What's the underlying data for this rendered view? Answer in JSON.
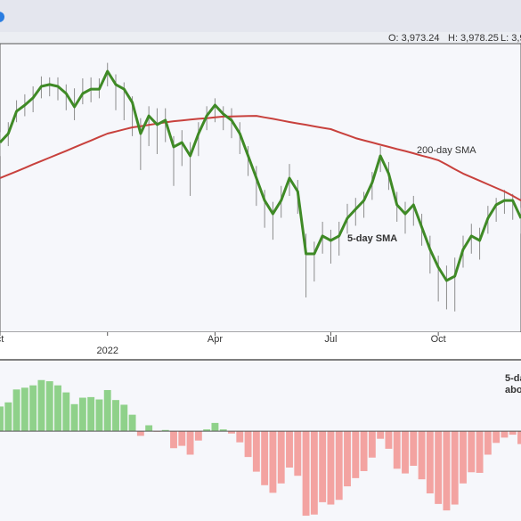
{
  "header": [
    "O: 3,973.24",
    "H: 3,978.25",
    "L: 3,9"
  ],
  "chart_data": [
    {
      "type": "line",
      "categories": [
        "ct",
        null,
        null,
        null,
        null,
        null,
        null,
        null,
        null,
        null,
        null,
        null,
        null,
        "2022",
        null,
        null,
        null,
        null,
        null,
        null,
        null,
        null,
        null,
        null,
        null,
        null,
        "Apr",
        null,
        null,
        null,
        null,
        null,
        null,
        null,
        null,
        null,
        null,
        null,
        null,
        null,
        "Jul",
        null,
        null,
        null,
        null,
        null,
        null,
        null,
        null,
        null,
        null,
        null,
        null,
        "Oct",
        null,
        null,
        null,
        null,
        null,
        null,
        null,
        null,
        null,
        null
      ],
      "ylim": [
        3470,
        4910
      ],
      "price_bars": {
        "color": "#8c8c8c",
        "high": [
          4470,
          4520,
          4630,
          4660,
          4700,
          4750,
          4745,
          4745,
          4710,
          4690,
          4740,
          4745,
          4740,
          4818,
          4760,
          4720,
          4650,
          4540,
          4600,
          4590,
          4590,
          4450,
          4480,
          4420,
          4520,
          4600,
          4640,
          4600,
          4590,
          4520,
          4400,
          4300,
          4180,
          4120,
          4200,
          4310,
          4230,
          3960,
          3920,
          4020,
          3980,
          4020,
          4110,
          4140,
          4170,
          4270,
          4400,
          4320,
          4170,
          4120,
          4150,
          4060,
          3950,
          3850,
          3800,
          3840,
          3950,
          4010,
          3990,
          4100,
          4140,
          4180,
          4160,
          4090
        ],
        "low": [
          4350,
          4400,
          4520,
          4550,
          4570,
          4640,
          4650,
          4630,
          4580,
          4530,
          4610,
          4620,
          4640,
          4700,
          4580,
          4530,
          4450,
          4280,
          4400,
          4360,
          4420,
          4200,
          4300,
          4150,
          4350,
          4480,
          4520,
          4480,
          4440,
          4360,
          4250,
          4100,
          3990,
          3930,
          4040,
          4150,
          4060,
          3640,
          3720,
          3860,
          3810,
          3850,
          3960,
          4000,
          4040,
          4130,
          4270,
          4180,
          4020,
          3960,
          4000,
          3900,
          3760,
          3620,
          3580,
          3570,
          3790,
          3860,
          3830,
          3960,
          4020,
          4060,
          4030,
          3960
        ]
      },
      "series": [
        {
          "name": "5-day SMA",
          "color": "#3f8a26",
          "values": [
            4418,
            4463,
            4575,
            4606,
            4642,
            4700,
            4709,
            4700,
            4664,
            4597,
            4664,
            4686,
            4686,
            4776,
            4709,
            4686,
            4619,
            4463,
            4552,
            4508,
            4530,
            4396,
            4418,
            4351,
            4463,
            4552,
            4606,
            4561,
            4530,
            4463,
            4351,
            4239,
            4127,
            4060,
            4127,
            4239,
            4172,
            3859,
            3859,
            3949,
            3926,
            3949,
            4038,
            4083,
            4127,
            4217,
            4351,
            4262,
            4105,
            4060,
            4105,
            3993,
            3881,
            3792,
            3725,
            3747,
            3881,
            3949,
            3926,
            4038,
            4105,
            4127,
            4127,
            4038
          ]
        },
        {
          "name": "200-day SMA",
          "color": "#c8413d",
          "values": [
            4239,
            4256,
            4273,
            4290,
            4308,
            4325,
            4342,
            4359,
            4376,
            4394,
            4411,
            4428,
            4446,
            4463,
            4473,
            4484,
            4494,
            4500,
            4506,
            4513,
            4519,
            4525,
            4529,
            4533,
            4537,
            4540,
            4544,
            4548,
            4549,
            4550,
            4551,
            4552,
            4544,
            4537,
            4529,
            4521,
            4514,
            4507,
            4499,
            4492,
            4485,
            4470,
            4455,
            4440,
            4429,
            4418,
            4407,
            4396,
            4385,
            4375,
            4364,
            4352,
            4341,
            4329,
            4307,
            4284,
            4262,
            4244,
            4226,
            4208,
            4190,
            4172,
            4150,
            4127
          ]
        }
      ]
    },
    {
      "type": "bar",
      "annotation": [
        "5-da",
        "abo"
      ],
      "ylim": [
        -15.3,
        12
      ],
      "positive_color": "#8fd18a",
      "negative_color": "#f3a3a1",
      "values": [
        4.2,
        4.9,
        7.1,
        7.4,
        7.8,
        8.7,
        8.5,
        7.8,
        6.6,
        4.6,
        5.7,
        5.8,
        5.4,
        7.0,
        5.3,
        4.5,
        2.8,
        -0.8,
        1.0,
        -0.1,
        0.2,
        -2.9,
        -2.5,
        -4.0,
        -1.6,
        0.3,
        1.4,
        0.3,
        -0.4,
        -1.9,
        -4.4,
        -6.9,
        -9.2,
        -10.5,
        -8.9,
        -6.2,
        -7.6,
        -14.4,
        -14.2,
        -12.1,
        -12.5,
        -11.7,
        -9.4,
        -8.0,
        -6.8,
        -4.5,
        -1.3,
        -3.0,
        -6.4,
        -7.2,
        -5.9,
        -8.2,
        -10.6,
        -12.4,
        -13.5,
        -12.5,
        -8.9,
        -7.0,
        -7.1,
        -4.0,
        -2.0,
        -1.1,
        -0.6,
        -2.2
      ]
    }
  ]
}
